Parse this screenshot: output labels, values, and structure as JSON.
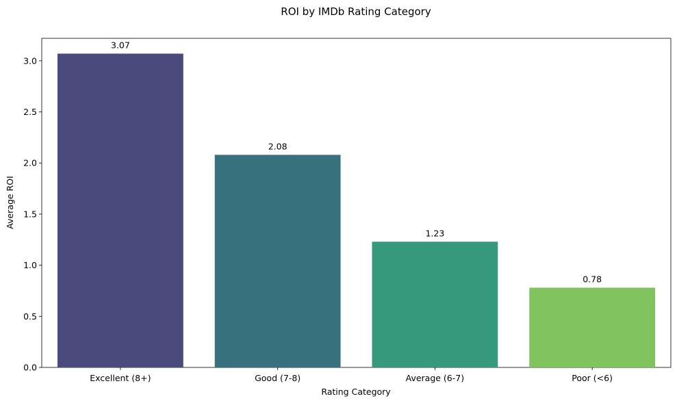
{
  "chart_data": {
    "type": "bar",
    "title": "ROI by IMDb Rating Category",
    "xlabel": "Rating Category",
    "ylabel": "Average ROI",
    "categories": [
      "Excellent (8+)",
      "Good (7-8)",
      "Average (6-7)",
      "Poor (<6)"
    ],
    "values": [
      3.07,
      2.08,
      1.23,
      0.78
    ],
    "value_labels": [
      "3.07",
      "2.08",
      "1.23",
      "0.78"
    ],
    "colors": [
      "#4a4b7c",
      "#37717e",
      "#36997b",
      "#80c35f"
    ],
    "ylim": [
      0,
      3.22
    ],
    "yticks": [
      0.0,
      0.5,
      1.0,
      1.5,
      2.0,
      2.5,
      3.0
    ],
    "ytick_labels": [
      "0.0",
      "0.5",
      "1.0",
      "1.5",
      "2.0",
      "2.5",
      "3.0"
    ],
    "grid": false,
    "legend": "none"
  }
}
